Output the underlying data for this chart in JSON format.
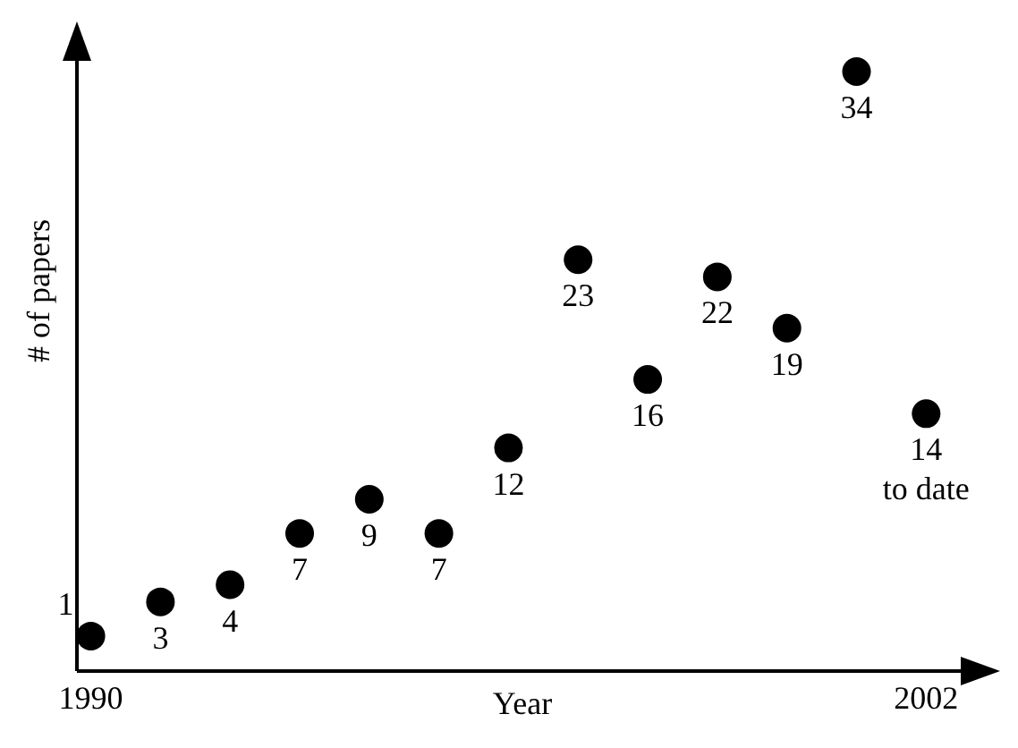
{
  "chart_data": {
    "type": "scatter",
    "xlabel": "Year",
    "ylabel": "# of papers",
    "x": [
      1990,
      1991,
      1992,
      1993,
      1994,
      1995,
      1996,
      1997,
      1998,
      1999,
      2000,
      2001,
      2002
    ],
    "values": [
      1,
      3,
      4,
      7,
      9,
      7,
      12,
      23,
      16,
      22,
      19,
      34,
      14
    ],
    "color": "#000000",
    "marker": "circle",
    "data_labels": true,
    "xlim": [
      1989.8,
      2002.6
    ],
    "xticks": [
      1990,
      2002
    ],
    "tick_labels": "x",
    "annotations": [
      {
        "text": "to date",
        "x": 2002,
        "y": 14
      }
    ]
  }
}
